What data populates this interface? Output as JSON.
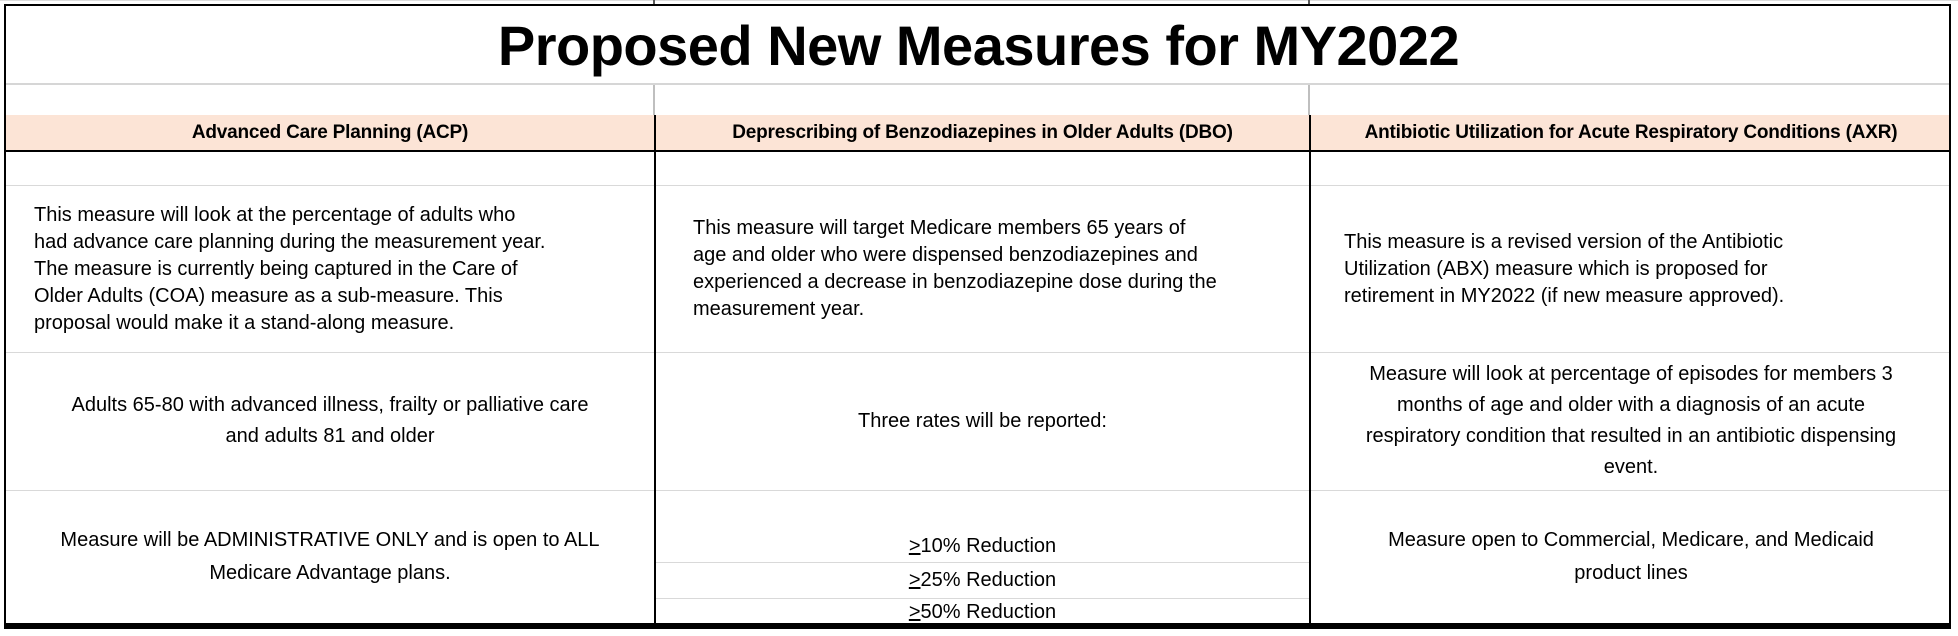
{
  "title": "Proposed New Measures for MY2022",
  "colors": {
    "header_bg": "#fce4d6",
    "grid_light": "#d9d9d9",
    "border_dark": "#000000"
  },
  "columns": [
    {
      "header": "Advanced Care Planning (ACP)",
      "description": "This measure will look at the percentage of adults who\nhad advance care planning during the measurement year.\nThe measure is currently being captured in the Care of\nOlder Adults (COA) measure as a sub-measure. This\nproposal would make it a stand-along measure.",
      "population": "Adults 65-80 with advanced illness, frailty or palliative care\nand adults 81 and older",
      "details": "Measure will be ADMINISTRATIVE ONLY and is open to ALL\nMedicare Advantage plans."
    },
    {
      "header": "Deprescribing of Benzodiazepines in Older Adults (DBO)",
      "description": "This measure will target Medicare members 65 years of\nage and older who were dispensed benzodiazepines and\nexperienced a decrease in benzodiazepine dose during the\nmeasurement year.",
      "population": "Three rates will be reported:",
      "rates": [
        {
          "symbol": ">",
          "label": "10% Reduction"
        },
        {
          "symbol": ">",
          "label": "25% Reduction"
        },
        {
          "symbol": ">",
          "label": "50% Reduction"
        }
      ]
    },
    {
      "header": "Antibiotic Utilization for Acute Respiratory Conditions (AXR)",
      "description": "This measure is a revised version of the Antibiotic\nUtilization (ABX) measure which is proposed for\nretirement in MY2022 (if new measure approved).",
      "population": "Measure will look at percentage of episodes for members 3\nmonths of age and older with a diagnosis of an acute\nrespiratory condition that resulted in an antibiotic dispensing\nevent.",
      "details": "Measure open to Commercial, Medicare, and Medicaid\nproduct lines"
    }
  ]
}
